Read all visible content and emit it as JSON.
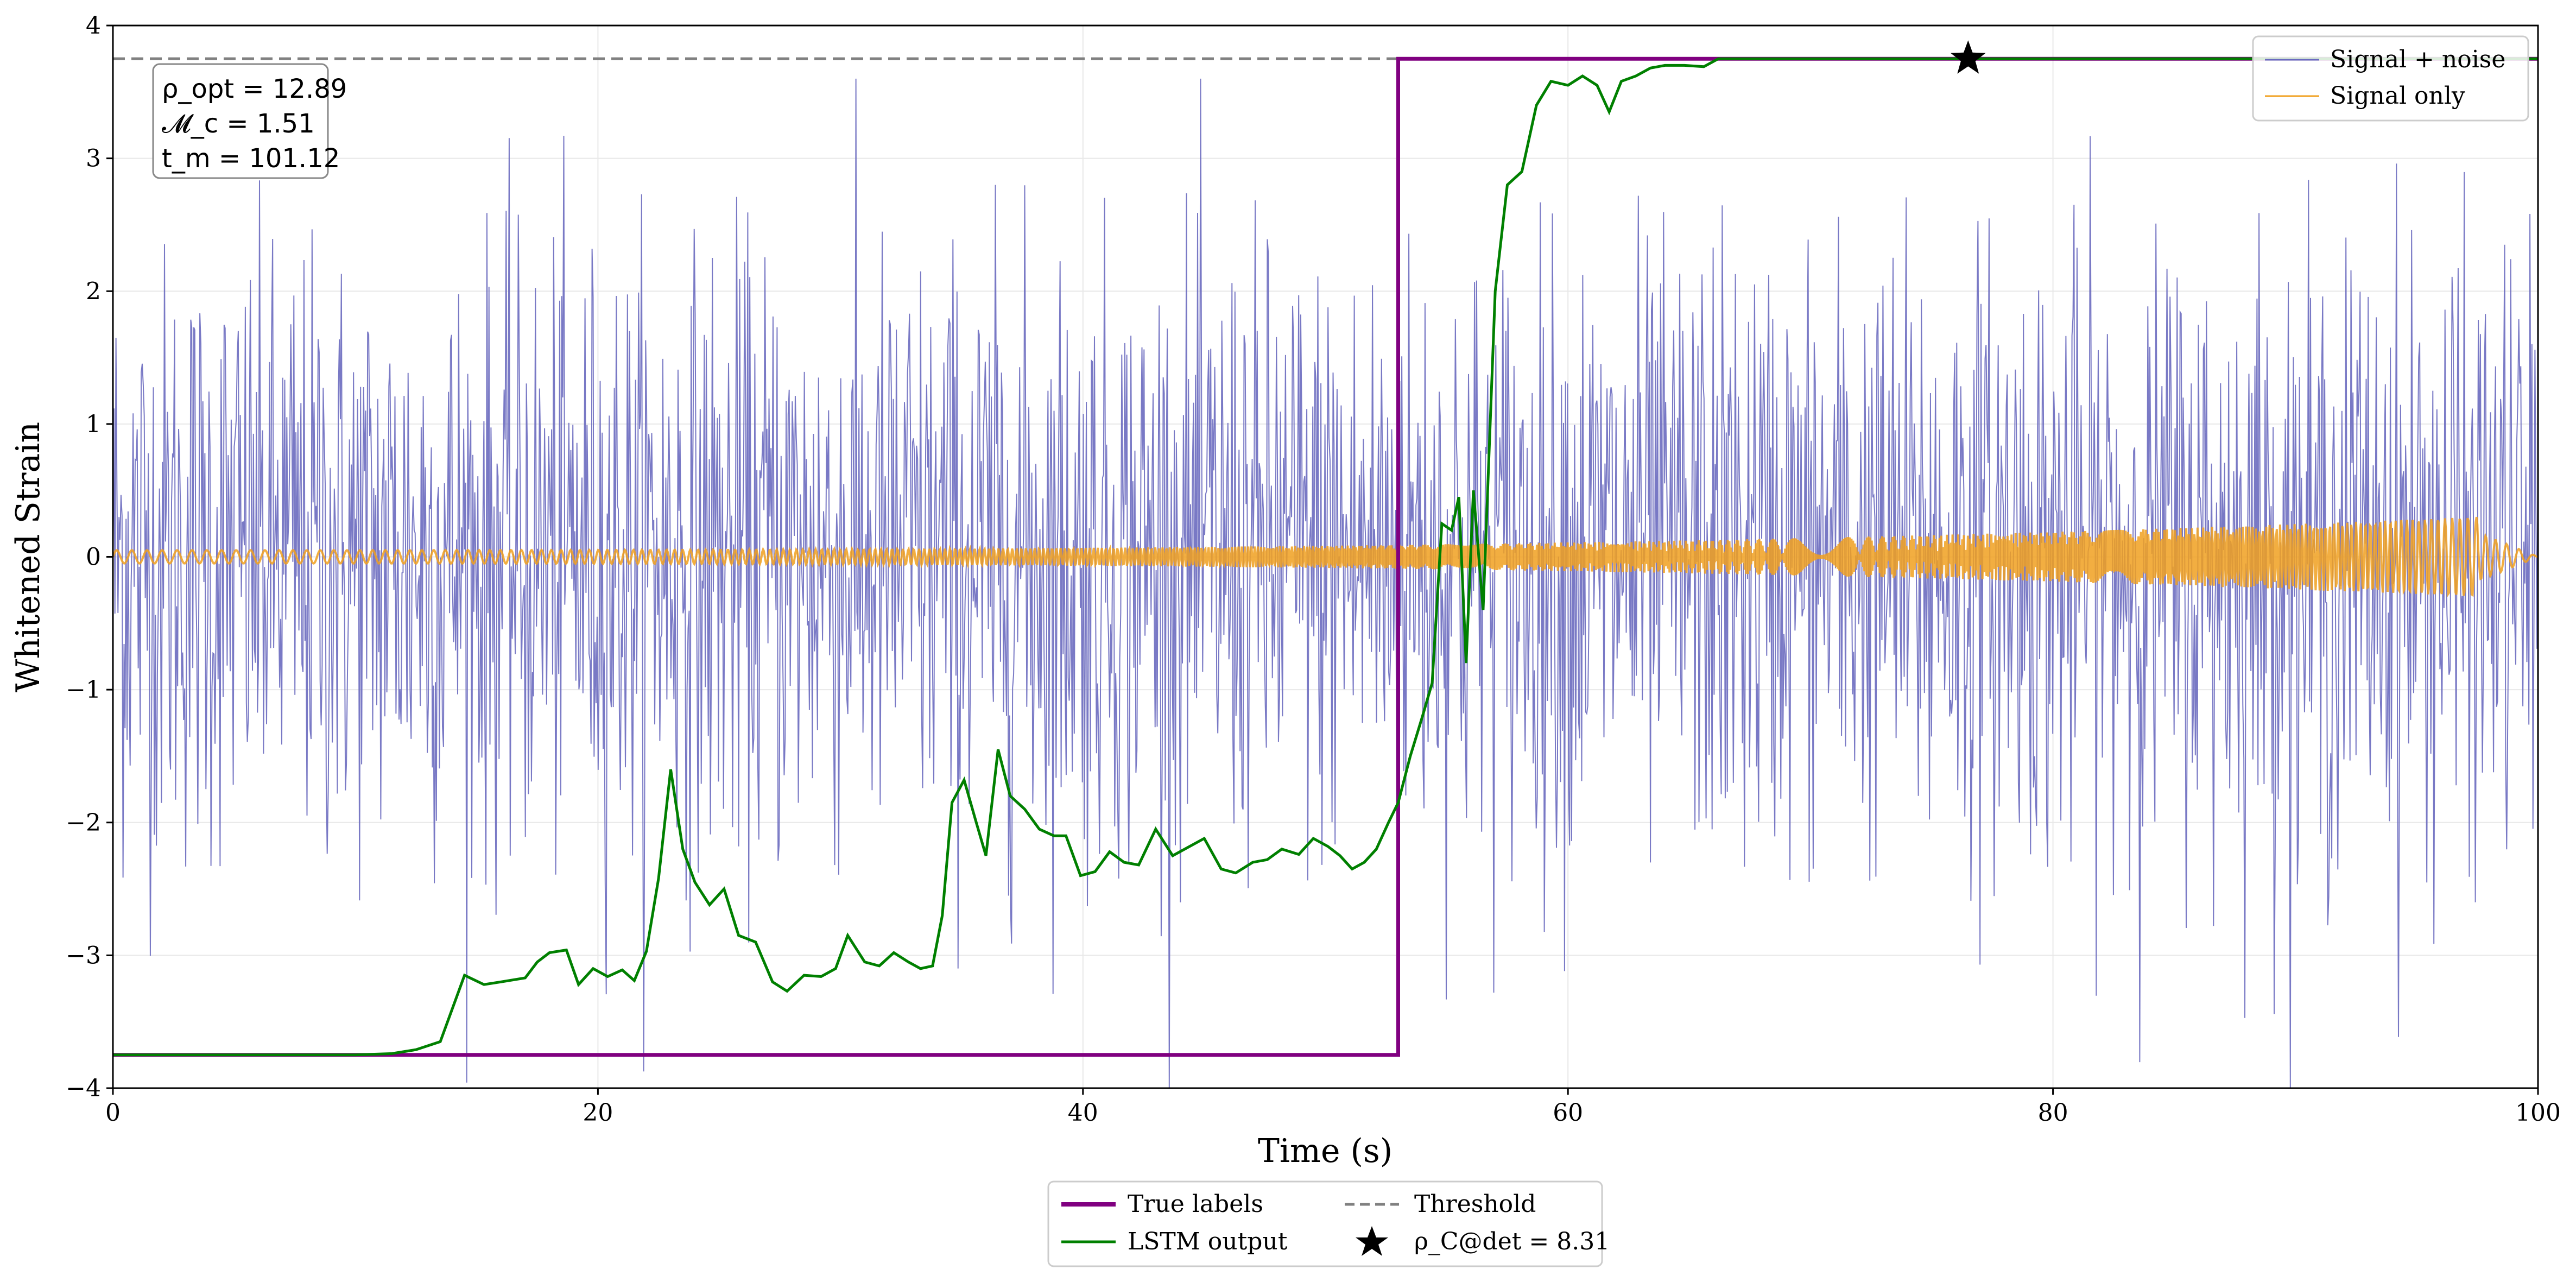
{
  "chart_data": {
    "type": "line",
    "xlabel": "Time (s)",
    "ylabel": "Whitened Strain",
    "xlim": [
      0,
      100
    ],
    "ylim": [
      -4,
      4
    ],
    "x_ticks": [
      "0",
      "20",
      "40",
      "60",
      "80",
      "100"
    ],
    "y_ticks": [
      "4",
      "3",
      "2",
      "1",
      "0",
      "−1",
      "−2",
      "−3",
      "−4"
    ],
    "grid": true,
    "threshold": 3.75,
    "true_labels": {
      "name": "True labels",
      "color": "#800080",
      "x": [
        0,
        53.0,
        53.0,
        100
      ],
      "y": [
        -3.75,
        -3.75,
        3.75,
        3.75
      ]
    },
    "lstm_output": {
      "name": "LSTM output",
      "color": "#008000",
      "x": [
        0,
        10,
        11.5,
        12.5,
        13.5,
        14.5,
        15.3,
        16,
        17,
        17.5,
        18,
        18.7,
        19.2,
        19.8,
        20.4,
        21,
        21.5,
        22.0,
        22.5,
        23.0,
        23.5,
        24.0,
        24.6,
        25.2,
        25.8,
        26.5,
        27.2,
        27.8,
        28.5,
        29.2,
        29.8,
        30.3,
        31.0,
        31.6,
        32.2,
        32.8,
        33.3,
        33.8,
        34.2,
        34.6,
        35.1,
        35.6,
        36.0,
        36.5,
        37.0,
        37.6,
        38.2,
        38.8,
        39.3,
        39.9,
        40.5,
        41.1,
        41.7,
        42.3,
        43.0,
        43.7,
        44.4,
        45.0,
        45.7,
        46.3,
        47.0,
        47.6,
        48.2,
        48.9,
        49.5,
        50.1,
        50.6,
        51.1,
        51.6,
        52.1,
        52.6,
        53.0,
        53.5,
        54.0,
        54.4,
        54.8,
        55.2,
        55.5,
        55.8,
        56.1,
        56.5,
        57.0,
        57.5,
        58.1,
        58.7,
        59.3,
        60.0,
        60.6,
        61.2,
        61.7,
        62.2,
        62.8,
        63.4,
        64.0,
        64.8,
        65.6,
        66.2,
        67.0,
        68.0,
        70,
        80,
        90,
        100
      ],
      "y": [
        -3.75,
        -3.75,
        -3.74,
        -3.71,
        -3.65,
        -3.15,
        -3.22,
        -3.2,
        -3.17,
        -3.05,
        -2.98,
        -2.96,
        -3.22,
        -3.1,
        -3.16,
        -3.11,
        -3.19,
        -2.97,
        -2.42,
        -1.6,
        -2.2,
        -2.45,
        -2.62,
        -2.5,
        -2.85,
        -2.9,
        -3.2,
        -3.27,
        -3.15,
        -3.16,
        -3.1,
        -2.85,
        -3.05,
        -3.08,
        -2.98,
        -3.05,
        -3.1,
        -3.08,
        -2.7,
        -1.85,
        -1.68,
        -2.0,
        -2.25,
        -1.45,
        -1.8,
        -1.9,
        -2.05,
        -2.1,
        -2.1,
        -2.4,
        -2.37,
        -2.22,
        -2.3,
        -2.32,
        -2.05,
        -2.25,
        -2.18,
        -2.12,
        -2.35,
        -2.38,
        -2.3,
        -2.28,
        -2.2,
        -2.24,
        -2.12,
        -2.18,
        -2.25,
        -2.35,
        -2.3,
        -2.2,
        -2.0,
        -1.85,
        -1.5,
        -1.2,
        -0.95,
        0.25,
        0.2,
        0.45,
        -0.8,
        0.5,
        -0.4,
        2.0,
        2.8,
        2.9,
        3.4,
        3.58,
        3.55,
        3.62,
        3.55,
        3.35,
        3.58,
        3.62,
        3.68,
        3.7,
        3.7,
        3.69,
        3.75,
        3.75,
        3.75,
        3.75,
        3.75,
        3.75,
        3.75
      ]
    },
    "threshold_line": {
      "name": "Threshold",
      "color": "#808080",
      "style": "dashed"
    },
    "signal_plus_noise": {
      "name": "Signal + noise",
      "color": "#6a6abf",
      "x_range": [
        0,
        100
      ],
      "description_of_values": "Noisy time series with amplitude ~±1 sigma fluctuating between about -4 and 3.6, centered on 0"
    },
    "signal_only": {
      "name": "Signal only",
      "color": "#f0a020",
      "x_range": [
        0,
        100
      ],
      "amplitude_start": 0.05,
      "amplitude_end": 0.32
    },
    "detection_marker": {
      "name": "ρ_C@det = 8.31",
      "x": 76.5,
      "y": 3.75,
      "symbol": "star"
    },
    "info_box": {
      "line1": "ρ_opt = 12.89",
      "line2": "𝓜_c = 1.51",
      "line3": "t_m = 101.12",
      "position": "top-left"
    },
    "legend_upper": {
      "position": "top-right",
      "entries": [
        "Signal + noise",
        "Signal only"
      ]
    },
    "legend_lower": {
      "position": "bottom-center",
      "entries": [
        "True labels",
        "Threshold",
        "LSTM output",
        "ρ_C@det = 8.31"
      ]
    }
  }
}
